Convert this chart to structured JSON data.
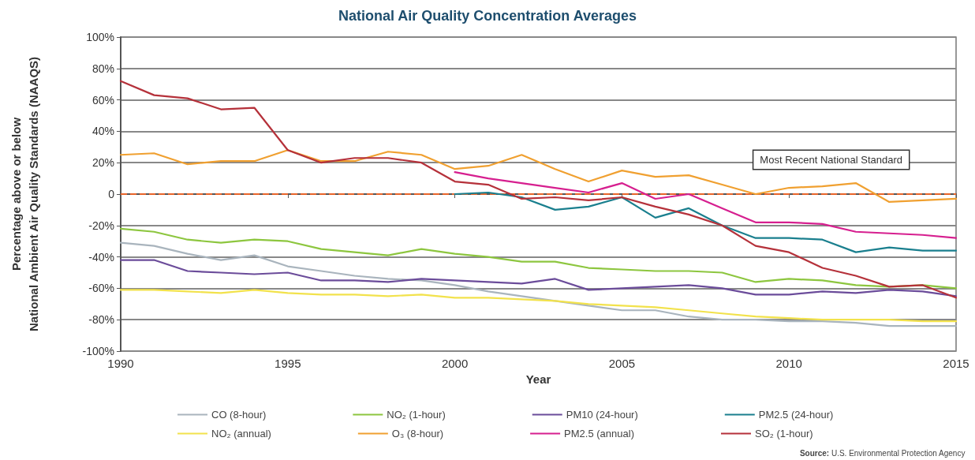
{
  "chart_data": {
    "type": "line",
    "title": "National Air Quality Concentration Averages",
    "xlabel": "Year",
    "ylabel": "Percentage above or below\nNational Ambient Air Quality Standards (NAAQS)",
    "x": [
      1990,
      1991,
      1992,
      1993,
      1994,
      1995,
      1996,
      1997,
      1998,
      1999,
      2000,
      2001,
      2002,
      2003,
      2004,
      2005,
      2006,
      2007,
      2008,
      2009,
      2010,
      2011,
      2012,
      2013,
      2014,
      2015
    ],
    "xlim": [
      1990,
      2015
    ],
    "xticks": [
      1990,
      1995,
      2000,
      2005,
      2010,
      2015
    ],
    "ylim": [
      -100,
      100
    ],
    "yticks": [
      {
        "value": -100,
        "label": "-100%"
      },
      {
        "value": -80,
        "label": "-80%"
      },
      {
        "value": -60,
        "label": "-60%"
      },
      {
        "value": -40,
        "label": "-40%"
      },
      {
        "value": -20,
        "label": "-20%"
      },
      0,
      {
        "value": 20,
        "label": "20%"
      },
      {
        "value": 40,
        "label": "40%"
      },
      {
        "value": 60,
        "label": "60%"
      },
      {
        "value": 80,
        "label": "80%"
      },
      {
        "value": 100,
        "label": "100%"
      }
    ],
    "grid": "y",
    "legend": "bottom",
    "marker": "none",
    "line_style": "solid",
    "series": [
      {
        "name": "CO (8-hour)",
        "color": "#a9b4bd",
        "values": [
          -31,
          -33,
          -38,
          -42,
          -39,
          -46,
          -49,
          -52,
          -54,
          -55,
          -58,
          -62,
          -65,
          -68,
          -71,
          -74,
          -74,
          -78,
          -80,
          -80,
          -81,
          -81,
          -82,
          -84,
          -84,
          -84
        ]
      },
      {
        "name": "NO₂ (1-hour)",
        "color": "#8dc63f",
        "values": [
          -22,
          -24,
          -29,
          -31,
          -29,
          -30,
          -35,
          -37,
          -39,
          -35,
          -38,
          -40,
          -43,
          -43,
          -47,
          -48,
          -49,
          -49,
          -50,
          -56,
          -54,
          -55,
          -58,
          -59,
          -58,
          -60
        ]
      },
      {
        "name": "PM10 (24-hour)",
        "color": "#6b4c9a",
        "values": [
          -42,
          -42,
          -49,
          -50,
          -51,
          -50,
          -55,
          -55,
          -56,
          -54,
          -55,
          -56,
          -57,
          -54,
          -61,
          -60,
          -59,
          -58,
          -60,
          -64,
          -64,
          -62,
          -63,
          -61,
          -62,
          -65
        ]
      },
      {
        "name": "PM2.5 (24-hour)",
        "color": "#1a7f8e",
        "x": [
          2000,
          2001,
          2002,
          2003,
          2004,
          2005,
          2006,
          2007,
          2008,
          2009,
          2010,
          2011,
          2012,
          2013,
          2014,
          2015
        ],
        "values": [
          0,
          1,
          -2,
          -10,
          -8,
          -2,
          -15,
          -9,
          -20,
          -28,
          -28,
          -29,
          -37,
          -34,
          -36,
          -36
        ]
      },
      {
        "name": "NO₂ (annual)",
        "color": "#f2e24c",
        "values": [
          -61,
          -61,
          -62,
          -63,
          -61,
          -63,
          -64,
          -64,
          -65,
          -64,
          -66,
          -66,
          -67,
          -68,
          -70,
          -71,
          -72,
          -74,
          -76,
          -78,
          -79,
          -80,
          -80,
          -80,
          -81,
          -81
        ]
      },
      {
        "name": "O₃ (8-hour)",
        "color": "#f0a030",
        "values": [
          25,
          26,
          19,
          21,
          21,
          28,
          21,
          21,
          27,
          25,
          16,
          18,
          25,
          16,
          8,
          15,
          11,
          12,
          6,
          0,
          4,
          5,
          7,
          -5,
          -4,
          -3
        ]
      },
      {
        "name": "PM2.5 (annual)",
        "color": "#d61f8f",
        "x": [
          2000,
          2001,
          2002,
          2003,
          2004,
          2005,
          2006,
          2007,
          2008,
          2009,
          2010,
          2011,
          2012,
          2013,
          2014,
          2015
        ],
        "values": [
          14,
          10,
          7,
          4,
          1,
          7,
          -3,
          0,
          -9,
          -18,
          -18,
          -19,
          -24,
          -25,
          -26,
          -28
        ]
      },
      {
        "name": "SO₂ (1-hour)",
        "color": "#b5313a",
        "values": [
          72,
          63,
          61,
          54,
          55,
          28,
          20,
          23,
          23,
          20,
          8,
          6,
          -3,
          -2,
          -4,
          -2,
          -8,
          -13,
          -20,
          -33,
          -37,
          -47,
          -52,
          -59,
          -58,
          -66
        ]
      }
    ],
    "ref_lines": [
      {
        "axis": "y",
        "value": 0,
        "label": "Most Recent National Standard",
        "color": "#e8652a",
        "line_style": "dashed"
      }
    ],
    "annotations": [
      "Source: U.S. Environmental Protection Agency"
    ]
  }
}
